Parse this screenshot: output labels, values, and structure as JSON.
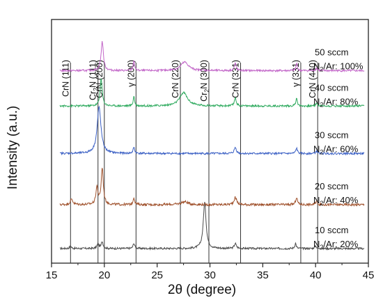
{
  "chart_data": {
    "type": "line",
    "xlabel": "2θ  (degree)",
    "ylabel": "Intensity (a.u.)",
    "xlim": [
      15,
      45
    ],
    "xticks": [
      15,
      20,
      25,
      30,
      35,
      40,
      45
    ],
    "tick_labels": [
      "15",
      "20",
      "25",
      "30",
      "35",
      "40",
      "45"
    ],
    "y_ticks_shown": false,
    "grid": false,
    "reference_lines": [
      {
        "x": 16.8,
        "base": "CrN",
        "sub": "",
        "tail": " (111)"
      },
      {
        "x": 19.4,
        "base": "Cr",
        "sub": "2",
        "tail": "N (111)"
      },
      {
        "x": 20.0,
        "base": "CrN",
        "sub": "",
        "tail": " (200)"
      },
      {
        "x": 23.0,
        "base": "γ",
        "sub": "",
        "tail": " (200)"
      },
      {
        "x": 27.2,
        "base": "CrN",
        "sub": "",
        "tail": " (220)"
      },
      {
        "x": 29.9,
        "base": "Cr",
        "sub": "2",
        "tail": "N (300)"
      },
      {
        "x": 32.9,
        "base": "CrN",
        "sub": "",
        "tail": " (331)"
      },
      {
        "x": 38.6,
        "base": "γ",
        "sub": "",
        "tail": " (331)"
      },
      {
        "x": 40.2,
        "base": "CrN",
        "sub": "",
        "tail": " (440)"
      }
    ],
    "series": [
      {
        "name_flow": "10 sccm",
        "name_ratio_pre": "N",
        "name_ratio_sub": "2",
        "name_ratio_post": "/Ar: 20%",
        "color": "#4a4a4a",
        "baseline": 0.06,
        "noise": 0.004,
        "peaks": [
          [
            16.8,
            0.01,
            0.1
          ],
          [
            19.4,
            0.018,
            0.12
          ],
          [
            19.8,
            0.028,
            0.1
          ],
          [
            22.8,
            0.022,
            0.09
          ],
          [
            29.5,
            0.19,
            0.16
          ],
          [
            32.4,
            0.02,
            0.12
          ],
          [
            38.1,
            0.022,
            0.08
          ],
          [
            40.0,
            0.01,
            0.1
          ]
        ]
      },
      {
        "name_flow": "20 sccm",
        "name_ratio_pre": "N",
        "name_ratio_sub": "2",
        "name_ratio_post": "/Ar: 40%",
        "color": "#a0522d",
        "baseline": 0.24,
        "noise": 0.005,
        "peaks": [
          [
            16.9,
            0.022,
            0.15
          ],
          [
            19.3,
            0.07,
            0.12
          ],
          [
            19.8,
            0.15,
            0.12
          ],
          [
            22.8,
            0.03,
            0.09
          ],
          [
            27.6,
            0.012,
            0.4
          ],
          [
            32.4,
            0.03,
            0.15
          ],
          [
            38.2,
            0.03,
            0.1
          ],
          [
            40.1,
            0.014,
            0.1
          ]
        ]
      },
      {
        "name_flow": "30 sccm",
        "name_ratio_pre": "N",
        "name_ratio_sub": "2",
        "name_ratio_post": "/Ar: 60%",
        "color": "#3a5fc4",
        "baseline": 0.45,
        "noise": 0.004,
        "peaks": [
          [
            19.5,
            0.19,
            0.22
          ],
          [
            22.8,
            0.025,
            0.09
          ],
          [
            32.4,
            0.025,
            0.12
          ],
          [
            38.2,
            0.022,
            0.09
          ],
          [
            40.1,
            0.01,
            0.1
          ]
        ]
      },
      {
        "name_flow": "40 sccm",
        "name_ratio_pre": "N",
        "name_ratio_sub": "2",
        "name_ratio_post": "/Ar: 80%",
        "color": "#2eaa5e",
        "baseline": 0.645,
        "noise": 0.004,
        "peaks": [
          [
            19.7,
            0.11,
            0.12
          ],
          [
            22.8,
            0.04,
            0.08
          ],
          [
            27.5,
            0.055,
            0.45
          ],
          [
            32.4,
            0.035,
            0.1
          ],
          [
            38.2,
            0.035,
            0.08
          ],
          [
            40.1,
            0.012,
            0.1
          ]
        ]
      },
      {
        "name_flow": "50 sccm",
        "name_ratio_pre": "N",
        "name_ratio_sub": "2",
        "name_ratio_post": "/Ar: 100%",
        "color": "#c266c8",
        "baseline": 0.79,
        "noise": 0.004,
        "peaks": [
          [
            19.8,
            0.12,
            0.13
          ],
          [
            22.8,
            0.04,
            0.08
          ],
          [
            27.6,
            0.035,
            0.45
          ],
          [
            32.4,
            0.03,
            0.1
          ],
          [
            38.2,
            0.03,
            0.08
          ],
          [
            40.1,
            0.01,
            0.1
          ]
        ]
      }
    ]
  }
}
